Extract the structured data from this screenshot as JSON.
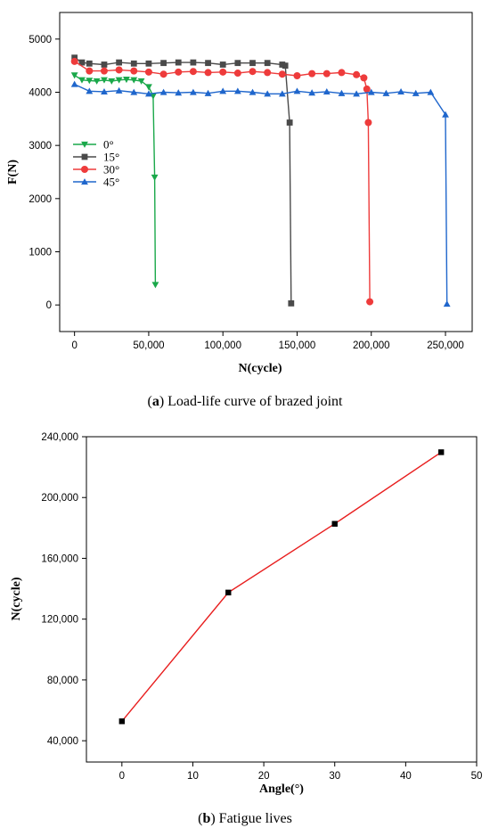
{
  "chart_data": [
    {
      "type": "line",
      "caption": {
        "letter": "a",
        "text": " Load-life curve of brazed joint"
      },
      "xlabel": "N(cycle)",
      "ylabel": "F(N)",
      "xlim": [
        -10000,
        268000
      ],
      "ylim": [
        -500,
        5500
      ],
      "xticks": [
        0,
        50000,
        100000,
        150000,
        200000,
        250000
      ],
      "xtick_labels": [
        "0",
        "50,000",
        "100,000",
        "150,000",
        "200,000",
        "250,000"
      ],
      "yticks": [
        0,
        1000,
        2000,
        3000,
        4000,
        5000
      ],
      "ytick_labels": [
        "0",
        "1000",
        "2000",
        "3000",
        "4000",
        "5000"
      ],
      "legend_position": "middle-left",
      "series": [
        {
          "name": "0°",
          "color": "#1aa84a",
          "marker": "triangle-down",
          "points": [
            [
              0,
              4320
            ],
            [
              5000,
              4230
            ],
            [
              10000,
              4220
            ],
            [
              15000,
              4210
            ],
            [
              20000,
              4230
            ],
            [
              25000,
              4210
            ],
            [
              30000,
              4230
            ],
            [
              35000,
              4240
            ],
            [
              40000,
              4230
            ],
            [
              45000,
              4210
            ],
            [
              50000,
              4100
            ],
            [
              53000,
              3930
            ],
            [
              54000,
              2400
            ],
            [
              54500,
              380
            ]
          ]
        },
        {
          "name": "15°",
          "color": "#4a4a4a",
          "marker": "square",
          "points": [
            [
              0,
              4650
            ],
            [
              5000,
              4560
            ],
            [
              10000,
              4540
            ],
            [
              20000,
              4520
            ],
            [
              30000,
              4560
            ],
            [
              40000,
              4540
            ],
            [
              50000,
              4540
            ],
            [
              60000,
              4550
            ],
            [
              70000,
              4560
            ],
            [
              80000,
              4560
            ],
            [
              90000,
              4550
            ],
            [
              100000,
              4520
            ],
            [
              110000,
              4550
            ],
            [
              120000,
              4550
            ],
            [
              130000,
              4550
            ],
            [
              140000,
              4520
            ],
            [
              142000,
              4500
            ],
            [
              145000,
              3430
            ],
            [
              146000,
              30
            ]
          ]
        },
        {
          "name": "30°",
          "color": "#ee3b3b",
          "marker": "circle",
          "points": [
            [
              0,
              4580
            ],
            [
              10000,
              4400
            ],
            [
              20000,
              4400
            ],
            [
              30000,
              4420
            ],
            [
              40000,
              4400
            ],
            [
              50000,
              4380
            ],
            [
              60000,
              4340
            ],
            [
              70000,
              4380
            ],
            [
              80000,
              4390
            ],
            [
              90000,
              4370
            ],
            [
              100000,
              4380
            ],
            [
              110000,
              4360
            ],
            [
              120000,
              4390
            ],
            [
              130000,
              4370
            ],
            [
              140000,
              4340
            ],
            [
              150000,
              4310
            ],
            [
              160000,
              4350
            ],
            [
              170000,
              4350
            ],
            [
              180000,
              4370
            ],
            [
              190000,
              4330
            ],
            [
              195000,
              4270
            ],
            [
              197000,
              4060
            ],
            [
              198000,
              3430
            ],
            [
              199000,
              60
            ]
          ]
        },
        {
          "name": "45°",
          "color": "#1f66cc",
          "marker": "triangle-up",
          "points": [
            [
              0,
              4150
            ],
            [
              10000,
              4020
            ],
            [
              20000,
              4010
            ],
            [
              30000,
              4030
            ],
            [
              40000,
              4000
            ],
            [
              50000,
              3970
            ],
            [
              60000,
              4000
            ],
            [
              70000,
              3990
            ],
            [
              80000,
              4000
            ],
            [
              90000,
              3980
            ],
            [
              100000,
              4020
            ],
            [
              110000,
              4020
            ],
            [
              120000,
              4000
            ],
            [
              130000,
              3970
            ],
            [
              140000,
              3970
            ],
            [
              150000,
              4020
            ],
            [
              160000,
              3990
            ],
            [
              170000,
              4010
            ],
            [
              180000,
              3980
            ],
            [
              190000,
              3970
            ],
            [
              200000,
              4000
            ],
            [
              210000,
              3980
            ],
            [
              220000,
              4010
            ],
            [
              230000,
              3980
            ],
            [
              240000,
              4000
            ],
            [
              250000,
              3580
            ],
            [
              251000,
              20
            ]
          ]
        }
      ]
    },
    {
      "type": "line",
      "caption": {
        "letter": "b",
        "text": " Fatigue lives"
      },
      "xlabel": "Angle(°)",
      "ylabel": "N(cycle)",
      "xlim": [
        -5,
        50
      ],
      "ylim": [
        26000,
        240000
      ],
      "xticks": [
        0,
        10,
        20,
        30,
        40,
        50
      ],
      "xtick_labels": [
        "0",
        "10",
        "20",
        "30",
        "40",
        "50"
      ],
      "yticks": [
        40000,
        80000,
        120000,
        160000,
        200000,
        240000
      ],
      "ytick_labels": [
        "40,000",
        "80,000",
        "120,000",
        "160,000",
        "200,000",
        "240,000"
      ],
      "series": [
        {
          "color": "#e81e1e",
          "marker_color": "#000000",
          "marker": "square",
          "points": [
            [
              0,
              52800
            ],
            [
              15,
              137500
            ],
            [
              30,
              182700
            ],
            [
              45,
              229800
            ]
          ]
        }
      ]
    }
  ]
}
